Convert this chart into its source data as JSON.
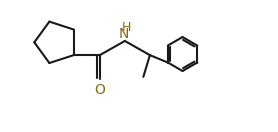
{
  "bg_color": "#ffffff",
  "line_color": "#1a1a1a",
  "O_color": "#8B6914",
  "N_color": "#8B6914",
  "lw": 1.5,
  "xlim": [
    -0.5,
    10.5
  ],
  "ylim": [
    -2.5,
    3.5
  ]
}
